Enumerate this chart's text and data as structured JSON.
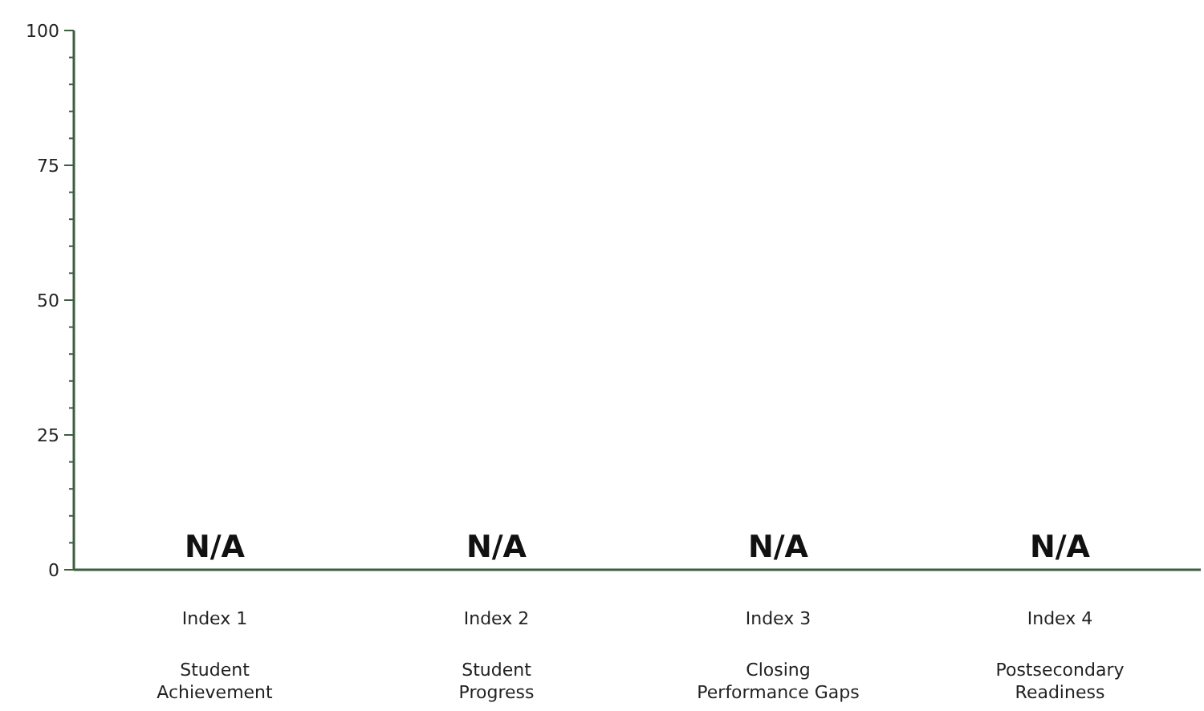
{
  "chart_data": {
    "type": "bar",
    "categories": [
      "Index 1\nStudent\nAchievement",
      "Index 2\nStudent\nProgress",
      "Index 3\nClosing\nPerformance Gaps",
      "Index 4\nPostsecondary\nReadiness"
    ],
    "values": [
      null,
      null,
      null,
      null
    ],
    "value_labels": [
      "N/A",
      "N/A",
      "N/A",
      "N/A"
    ],
    "ylim": [
      0,
      100
    ],
    "yticks": [
      0,
      {
        "value": 5,
        "label": null
      },
      {
        "value": 10,
        "label": null
      },
      {
        "value": 15,
        "label": null
      },
      {
        "value": 20,
        "label": null
      },
      25,
      {
        "value": 30,
        "label": null
      },
      {
        "value": 35,
        "label": null
      },
      {
        "value": 40,
        "label": null
      },
      {
        "value": 45,
        "label": null
      },
      50,
      {
        "value": 55,
        "label": null
      },
      {
        "value": 60,
        "label": null
      },
      {
        "value": 65,
        "label": null
      },
      {
        "value": 70,
        "label": null
      },
      75,
      {
        "value": 80,
        "label": null
      },
      {
        "value": 85,
        "label": null
      },
      {
        "value": 90,
        "label": null
      },
      {
        "value": 95,
        "label": null
      },
      100
    ],
    "grid": false
  }
}
